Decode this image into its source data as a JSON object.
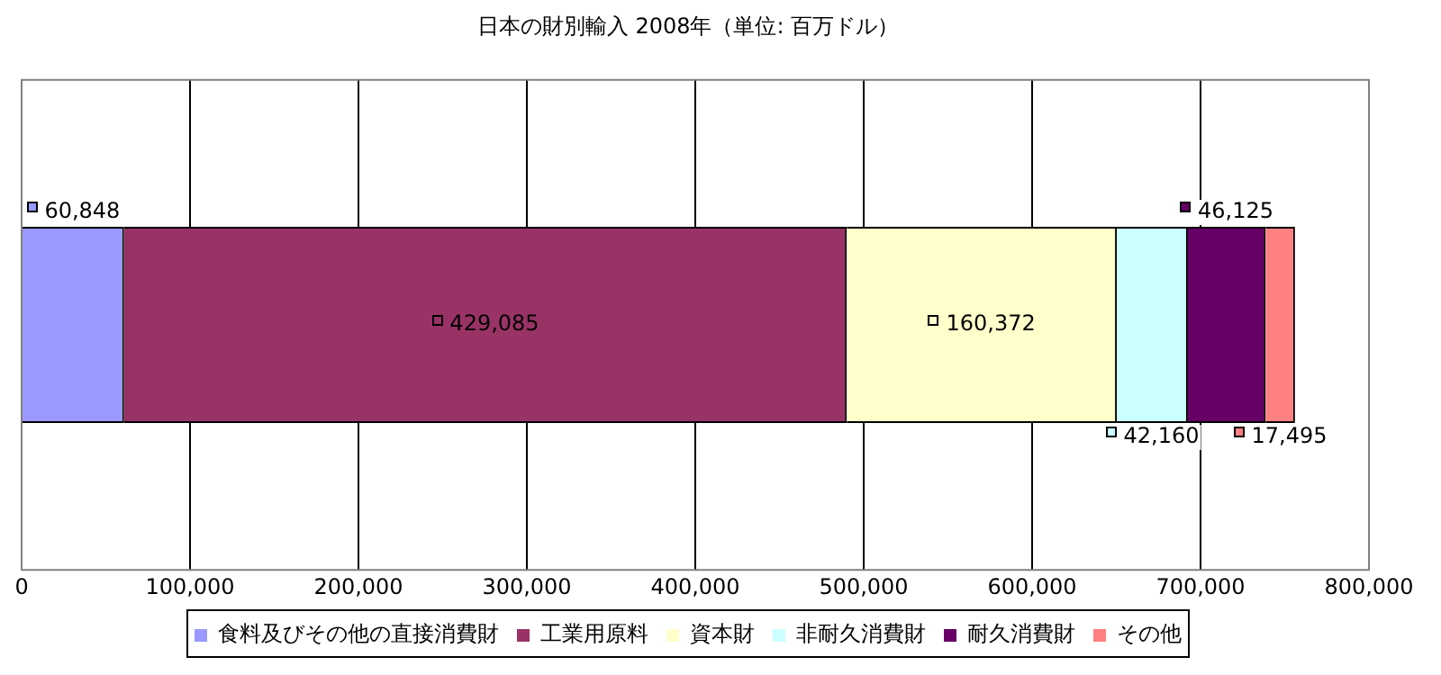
{
  "chart_data": {
    "type": "bar",
    "orientation": "horizontal",
    "stacked": true,
    "title": "日本の財別輸入 2008年（単位: 百万ドル）",
    "categories": [
      null
    ],
    "series": [
      {
        "name": "食料及びその他の直接消費財",
        "color": "#9999ff",
        "values": [
          60848
        ],
        "value_labels": [
          "60,848"
        ]
      },
      {
        "name": "工業用原料",
        "color": "#993366",
        "values": [
          429085
        ],
        "value_labels": [
          "429,085"
        ]
      },
      {
        "name": "資本財",
        "color": "#ffffcc",
        "values": [
          160372
        ],
        "value_labels": [
          "160,372"
        ]
      },
      {
        "name": "非耐久消費財",
        "color": "#ccffff",
        "values": [
          42160
        ],
        "value_labels": [
          "42,160"
        ]
      },
      {
        "name": "耐久消費財",
        "color": "#660066",
        "values": [
          46125
        ],
        "value_labels": [
          "46,125"
        ]
      },
      {
        "name": "その他",
        "color": "#ff8080",
        "values": [
          17495
        ],
        "value_labels": [
          "17,495"
        ]
      }
    ],
    "xlim": [
      0,
      800000
    ],
    "xticks": [
      0,
      {
        "value": 100000,
        "label": "100,000"
      },
      {
        "value": 200000,
        "label": "200,000"
      },
      {
        "value": 300000,
        "label": "300,000"
      },
      {
        "value": 400000,
        "label": "400,000"
      },
      {
        "value": 500000,
        "label": "500,000"
      },
      {
        "value": 600000,
        "label": "600,000"
      },
      {
        "value": 700000,
        "label": "700,000"
      },
      {
        "value": 800000,
        "label": "800,000"
      }
    ],
    "grid": "x",
    "legend": "bottom"
  }
}
